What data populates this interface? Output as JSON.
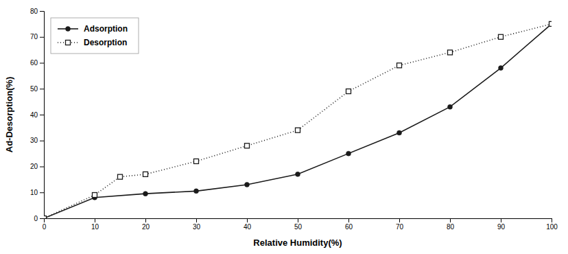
{
  "chart_data": {
    "type": "line",
    "xlabel": "Relative Humidity(%)",
    "ylabel": "Ad-Desorption(%)",
    "series": [
      {
        "name": "Adsorption",
        "color": "#1a1a1a",
        "marker": "circle",
        "line_style": "solid",
        "x": [
          0,
          10,
          20,
          30,
          40,
          50,
          60,
          70,
          80,
          90,
          100
        ],
        "values": [
          0,
          8,
          9.5,
          10.5,
          13,
          17,
          25,
          33,
          43,
          58,
          75
        ]
      },
      {
        "name": "Desorption",
        "color": "#1a1a1a",
        "marker": "square",
        "line_style": "dotted",
        "x": [
          0,
          10,
          15,
          20,
          30,
          40,
          50,
          60,
          70,
          80,
          90,
          100
        ],
        "values": [
          0,
          9,
          16,
          17,
          22,
          28,
          34,
          49,
          59,
          64,
          70,
          75
        ]
      }
    ],
    "xlim": [
      0,
      100
    ],
    "ylim": [
      0,
      80
    ],
    "xticks": [
      0,
      10,
      20,
      30,
      40,
      50,
      60,
      70,
      80,
      90,
      100
    ],
    "yticks": [
      0,
      10,
      20,
      30,
      40,
      50,
      60,
      70,
      80
    ],
    "grid": false,
    "legend": "upper left"
  }
}
